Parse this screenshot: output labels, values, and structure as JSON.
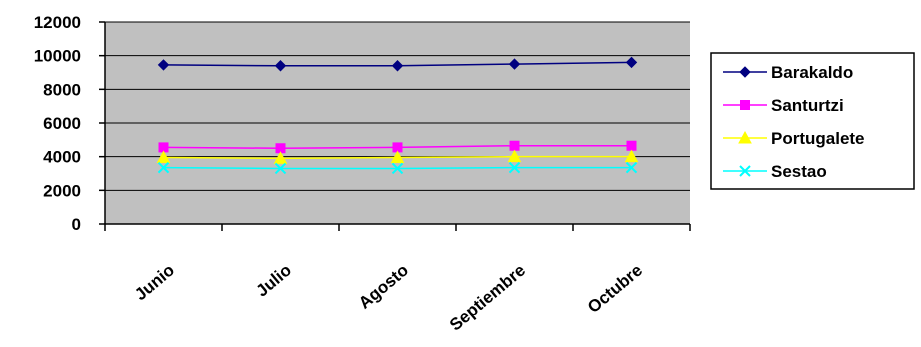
{
  "chart_data": {
    "type": "line",
    "categories": [
      "Junio",
      "Julio",
      "Agosto",
      "Septiembre",
      "Octubre"
    ],
    "ylim": [
      0,
      12000
    ],
    "yticks": [
      0,
      2000,
      4000,
      6000,
      8000,
      10000,
      12000
    ],
    "ytick_labels": [
      "0",
      "2000",
      "4000",
      "6000",
      "8000",
      "10000",
      "12000"
    ],
    "grid": "horizontal",
    "plot_background": "#c0c0c0",
    "legend_position": "right",
    "series": [
      {
        "name": "Barakaldo",
        "values": [
          9450,
          9400,
          9400,
          9500,
          9600
        ],
        "color": "#000080",
        "marker": "diamond"
      },
      {
        "name": "Santurtzi",
        "values": [
          4550,
          4500,
          4550,
          4650,
          4650
        ],
        "color": "#ff00ff",
        "marker": "square"
      },
      {
        "name": "Portugalete",
        "values": [
          3950,
          3900,
          3950,
          4000,
          4000
        ],
        "color": "#ffff00",
        "marker": "triangle"
      },
      {
        "name": "Sestao",
        "values": [
          3350,
          3300,
          3300,
          3350,
          3350
        ],
        "color": "#00ffff",
        "marker": "x"
      }
    ]
  }
}
